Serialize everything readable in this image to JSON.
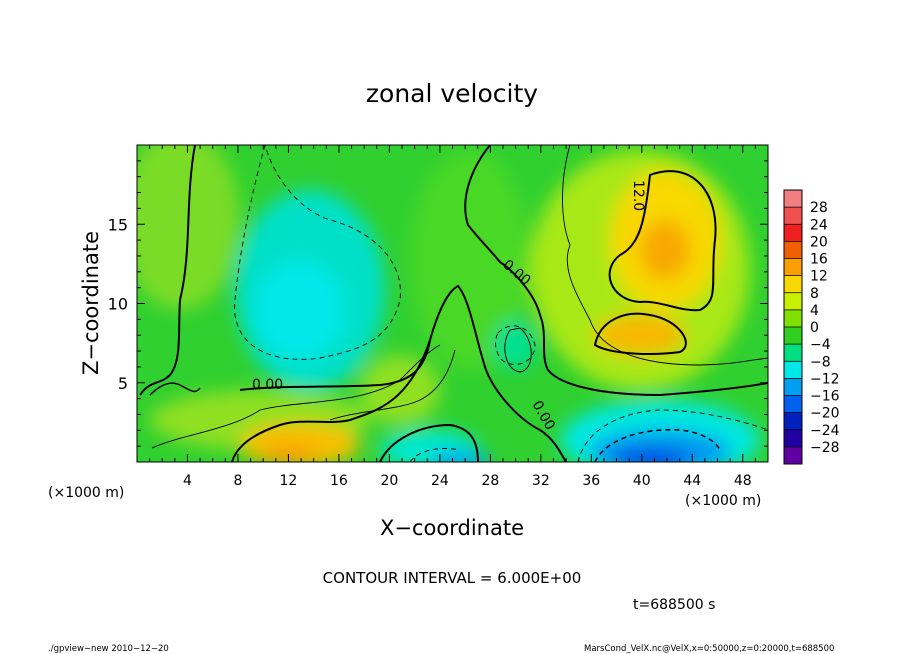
{
  "chart_data": {
    "type": "heatmap",
    "title": "zonal velocity",
    "xlabel": "X−coordinate",
    "ylabel": "Z−coordinate",
    "x_unit": "(×1000 m)",
    "y_unit": "(×1000 m)",
    "x_range": [
      0,
      50
    ],
    "y_range": [
      0,
      20
    ],
    "x_ticks": [
      "4",
      "8",
      "12",
      "16",
      "20",
      "24",
      "28",
      "32",
      "36",
      "40",
      "44",
      "48"
    ],
    "y_ticks": [
      "5",
      "10",
      "15"
    ],
    "colorbar": {
      "labels": [
        "28",
        "24",
        "20",
        "16",
        "12",
        "8",
        "4",
        "0",
        "−4",
        "−8",
        "−12",
        "−16",
        "−20",
        "−24",
        "−28"
      ],
      "colors": [
        "#f08080",
        "#f05050",
        "#f02020",
        "#f06000",
        "#f8a000",
        "#f8d800",
        "#c8f000",
        "#80e000",
        "#30d020",
        "#00e080",
        "#00e8e8",
        "#00a0f0",
        "#0060f0",
        "#0020c0",
        "#2000a0",
        "#6000a0"
      ]
    },
    "contour_labels": [
      "12.0",
      "0.00",
      "0.00",
      "0.00"
    ],
    "contour_interval": "CONTOUR INTERVAL = 6.000E+00",
    "time_label": "t=688500 s",
    "footer_left": "./gpview−new  2010−12−20",
    "footer_right": "MarsCond_VelX.nc@VelX,x=0:50000,z=0:20000,t=688500"
  }
}
